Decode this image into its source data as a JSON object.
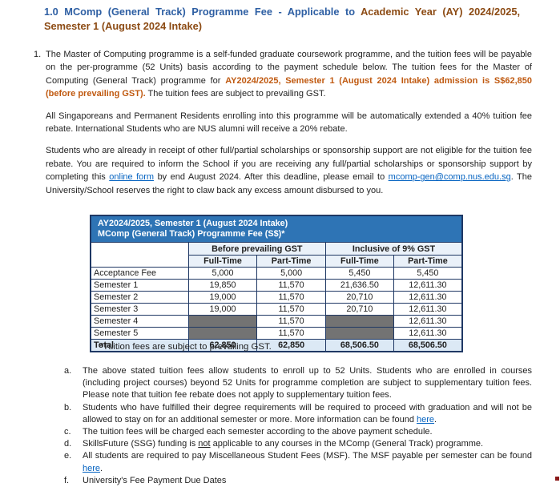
{
  "title": {
    "segments": [
      {
        "text": "1.0 MComp (General Track) Programme Fee - Applicable to ",
        "style": "blue"
      },
      {
        "text": "Academic Year (AY) 2024/2025, Semester 1 (August 2024 Intake)",
        "style": "brown"
      }
    ]
  },
  "intro": {
    "marker": "1.",
    "p1": [
      {
        "text": "The Master of Computing programme is a self-funded graduate coursework programme, and the tuition fees will be payable on the per-programme (52 Units) basis according to the payment schedule below. The tuition fees for the Master of Computing (General Track) programme for ",
        "style": "plain"
      },
      {
        "text": "AY2024/2025, Semester 1 (August 2024 Intake) admission is S$62,850 (before prevailing GST).",
        "style": "accent"
      },
      {
        "text": " The tuition fees are subject to prevailing GST.",
        "style": "plain"
      }
    ],
    "p2": [
      {
        "text": "All Singaporeans and Permanent Residents enrolling into this programme will be automatically extended a 40% tuition fee rebate. International Students who are NUS alumni will receive a 20% rebate.",
        "style": "plain"
      }
    ],
    "p3": [
      {
        "text": "Students who are already in receipt of other full/partial scholarships or sponsorship support are not eligible for the tuition fee rebate. You are required to inform the School if you are receiving any full/partial scholarships or sponsorship support by completing this ",
        "style": "plain"
      },
      {
        "text": "online form",
        "style": "link"
      },
      {
        "text": " by end August 2024. After this deadline, please email to ",
        "style": "plain"
      },
      {
        "text": "mcomp-gen@comp.nus.edu.sg",
        "style": "link"
      },
      {
        "text": ". The University/School reserves the right to claw back any excess amount disbursed to you.",
        "style": "plain"
      }
    ]
  },
  "fee_table": {
    "banner_line1": "AY2024/2025, Semester 1 (August 2024 Intake)",
    "banner_line2": "MComp (General Track) Programme Fee (S$)*",
    "group_headers": [
      "Before prevailing GST",
      "Inclusive of 9% GST"
    ],
    "column_headers": [
      "Full-Time",
      "Part-Time",
      "Full-Time",
      "Part-Time"
    ],
    "rows": [
      {
        "label": "Acceptance Fee",
        "values": [
          "5,000",
          "5,000",
          "5,450",
          "5,450"
        ]
      },
      {
        "label": "Semester 1",
        "values": [
          "19,850",
          "11,570",
          "21,636.50",
          "12,611.30"
        ]
      },
      {
        "label": "Semester 2",
        "values": [
          "19,000",
          "11,570",
          "20,710",
          "12,611.30"
        ]
      },
      {
        "label": "Semester 3",
        "values": [
          "19,000",
          "11,570",
          "20,710",
          "12,611.30"
        ]
      },
      {
        "label": "Semester 4",
        "values": [
          "",
          "11,570",
          "",
          "12,611.30"
        ]
      },
      {
        "label": "Semester 5",
        "values": [
          "",
          "11,570",
          "",
          "12,611.30"
        ]
      },
      {
        "label": "Total",
        "values": [
          "62,850",
          "62,850",
          "68,506.50",
          "68,506.50"
        ]
      }
    ],
    "footnote": "*Tuition fees are subject to prevailing GST."
  },
  "notes": [
    {
      "marker": "a.",
      "segments": [
        {
          "text": "The above stated tuition fees allow students to enroll up to 52 Units. Students who are enrolled in courses (including project courses) beyond 52 Units for programme completion are subject to supplementary tuition fees. Please note that tuition fee rebate does not apply to supplementary tuition fees.",
          "style": "plain"
        }
      ]
    },
    {
      "marker": "b.",
      "segments": [
        {
          "text": "Students who have fulfilled their degree requirements will be required to proceed with graduation and will not be allowed to stay on for an additional semester or more. More information can be found ",
          "style": "plain"
        },
        {
          "text": "here",
          "style": "link"
        },
        {
          "text": ".",
          "style": "plain"
        }
      ]
    },
    {
      "marker": "c.",
      "segments": [
        {
          "text": "The tuition fees will be charged each semester according to the above payment schedule.",
          "style": "plain"
        }
      ]
    },
    {
      "marker": "d.",
      "segments": [
        {
          "text": "SkillsFuture (SSG) funding is ",
          "style": "plain"
        },
        {
          "text": "not",
          "style": "underline"
        },
        {
          "text": " applicable to any courses in the MComp (General Track) programme.",
          "style": "plain"
        }
      ]
    },
    {
      "marker": "e.",
      "segments": [
        {
          "text": "All students are required to pay Miscellaneous Student Fees (MSF). The MSF payable per semester can be found ",
          "style": "plain"
        },
        {
          "text": "here",
          "style": "link"
        },
        {
          "text": ".",
          "style": "plain"
        }
      ]
    },
    {
      "marker": "f.",
      "segments": [
        {
          "text": "University's Fee Payment Due Dates",
          "style": "plain"
        }
      ]
    }
  ],
  "colors": {
    "title_blue": "#2E5FA3",
    "title_brown": "#8C4B14",
    "accent_orange": "#C05A11",
    "link_blue": "#0563C1",
    "table_banner_bg": "#2E74B5",
    "table_border": "#1F3864",
    "table_subheader_bg": "#EAF1F9",
    "table_total_bg": "#DCE9F5",
    "table_grey_cell": "#737373"
  }
}
